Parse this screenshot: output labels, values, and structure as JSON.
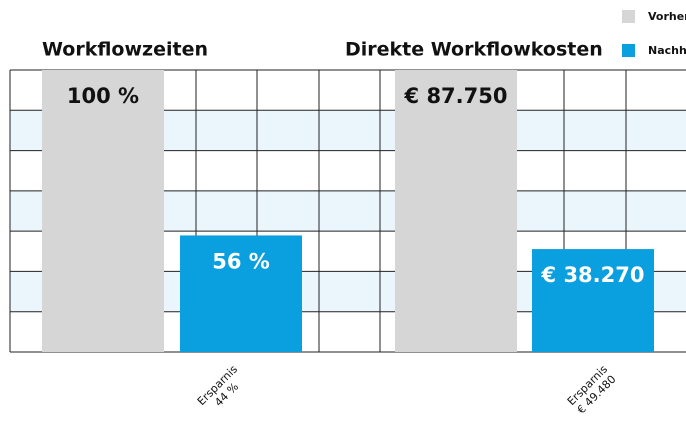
{
  "legend": {
    "items": [
      {
        "name": "Vorher",
        "color": "#d6d6d6"
      },
      {
        "name": "Nachher",
        "color": "#0a9fdf"
      }
    ]
  },
  "chart_data": [
    {
      "type": "bar",
      "title": "Workflowzeiten",
      "values": [
        100,
        56
      ],
      "value_labels": [
        "100 %",
        "56 %"
      ],
      "ylim": [
        25,
        100
      ],
      "annotation": [
        "Ersparnis",
        "44 %"
      ]
    },
    {
      "type": "bar",
      "title": "Direkte Workflowkosten",
      "values": [
        87750,
        38270
      ],
      "value_labels": [
        "€ 87.750",
        "€ 38.270"
      ],
      "ylim": [
        9830,
        87750
      ],
      "annotation": [
        "Ersparnis",
        "€ 49.480"
      ]
    }
  ]
}
